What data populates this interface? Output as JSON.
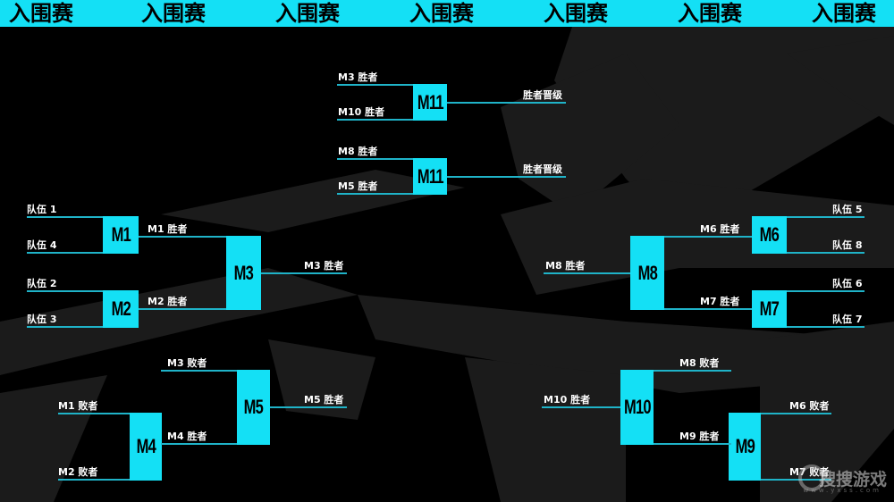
{
  "header": {
    "title_repeated": [
      "入围赛",
      "入围赛",
      "入围赛",
      "入围赛",
      "入围赛",
      "入围赛",
      "入围赛"
    ]
  },
  "colors": {
    "accent": "#14e0f5",
    "line": "#1fb3c8",
    "background": "#000000",
    "streaks": "#1b1b1b"
  },
  "matches": {
    "m11a": {
      "name": "M11",
      "in_top": "M3 胜者",
      "in_bottom": "M10 胜者",
      "out": "胜者晋级"
    },
    "m11b": {
      "name": "M11",
      "in_top": "M8 胜者",
      "in_bottom": "M5 胜者",
      "out": "胜者晋级"
    },
    "m1": {
      "name": "M1",
      "in_top": "队伍 1",
      "in_bottom": "队伍 4"
    },
    "m2": {
      "name": "M2",
      "in_top": "队伍 2",
      "in_bottom": "队伍 3"
    },
    "m3": {
      "name": "M3",
      "in_top": "M1 胜者",
      "in_bottom": "M2 胜者",
      "out": "M3 胜者"
    },
    "m4": {
      "name": "M4",
      "in_top": "M1 败者",
      "in_bottom": "M2 败者"
    },
    "m5": {
      "name": "M5",
      "in_top": "M3 败者",
      "in_bottom": "M4 胜者",
      "out": "M5 胜者"
    },
    "m6": {
      "name": "M6",
      "in_top": "队伍 5",
      "in_bottom": "队伍 8"
    },
    "m7": {
      "name": "M7",
      "in_top": "队伍 6",
      "in_bottom": "队伍 7"
    },
    "m8": {
      "name": "M8",
      "in_top": "M6 胜者",
      "in_bottom": "M7 胜者",
      "out": "M8 胜者"
    },
    "m9": {
      "name": "M9",
      "in_top": "M6 败者",
      "in_bottom": "M7 败者"
    },
    "m10": {
      "name": "M10",
      "in_top": "M8 败者",
      "in_bottom": "M9 胜者",
      "out": "M10 胜者"
    }
  },
  "watermark": {
    "text": "搜搜游戏",
    "url_text": "www.yxss.com"
  }
}
